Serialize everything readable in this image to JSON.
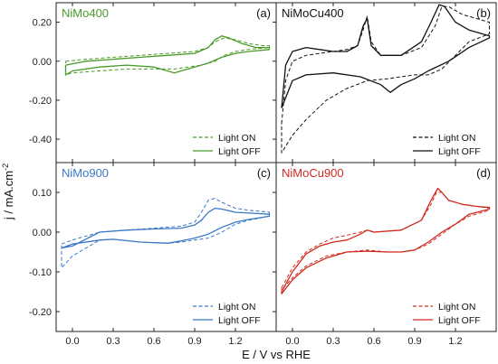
{
  "figure": {
    "ylabel": "j / mA.cm",
    "ylabel_sup": "-2",
    "xlabel": "E / V vs RHE"
  },
  "chart_data": [
    {
      "type": "line",
      "title": "NiMo400",
      "title_color": "#4a9a2a",
      "panel_label": "(a)",
      "x_ticks": [
        "0.0",
        "0.3",
        "0.6",
        "0.9",
        "1.2"
      ],
      "y_ticks": [
        "0.20",
        "0.00",
        "-0.20",
        "-0.40"
      ],
      "xlim": [
        -0.12,
        1.5
      ],
      "ylim": [
        -0.52,
        0.3
      ],
      "legend_position": "bottom-right",
      "series": [
        {
          "name": "Light ON",
          "style": "dashed",
          "color": "#4a9a2a",
          "x": [
            -0.05,
            0.1,
            0.3,
            0.5,
            0.7,
            0.9,
            1.0,
            1.05,
            1.12,
            1.2,
            1.3,
            1.4,
            1.45,
            1.45,
            1.3,
            1.2,
            1.12,
            1.05,
            0.95,
            0.85,
            0.75,
            0.6,
            0.4,
            0.2,
            0.0,
            -0.05
          ],
          "y": [
            0.0,
            0.01,
            0.02,
            0.03,
            0.04,
            0.05,
            0.07,
            0.1,
            0.12,
            0.11,
            0.09,
            0.08,
            0.08,
            0.07,
            0.06,
            0.05,
            0.03,
            0.0,
            -0.02,
            -0.03,
            -0.04,
            -0.04,
            -0.04,
            -0.05,
            -0.06,
            -0.07
          ]
        },
        {
          "name": "Light OFF",
          "style": "solid",
          "color": "#4a9a2a",
          "x": [
            -0.05,
            0.1,
            0.3,
            0.5,
            0.7,
            0.9,
            1.0,
            1.05,
            1.1,
            1.15,
            1.25,
            1.35,
            1.45,
            1.45,
            1.3,
            1.2,
            1.1,
            1.0,
            0.9,
            0.8,
            0.75,
            0.7,
            0.6,
            0.4,
            0.2,
            0.0,
            -0.05
          ],
          "y": [
            -0.02,
            0.0,
            0.01,
            0.02,
            0.03,
            0.04,
            0.07,
            0.11,
            0.13,
            0.12,
            0.09,
            0.07,
            0.07,
            0.06,
            0.05,
            0.04,
            0.02,
            -0.01,
            -0.03,
            -0.05,
            -0.06,
            -0.05,
            -0.03,
            -0.02,
            -0.03,
            -0.05,
            -0.07
          ]
        }
      ]
    },
    {
      "type": "line",
      "title": "NiMoCu400",
      "title_color": "#111111",
      "panel_label": "(b)",
      "x_ticks": [
        "0.0",
        "0.3",
        "0.6",
        "0.9",
        "1.2"
      ],
      "y_ticks": [],
      "xlim": [
        -0.12,
        1.5
      ],
      "ylim": [
        -0.52,
        0.3
      ],
      "legend_position": "bottom-right",
      "series": [
        {
          "name": "Light ON",
          "style": "dashed",
          "color": "#111111",
          "x": [
            -0.08,
            -0.05,
            0.0,
            0.1,
            0.2,
            0.3,
            0.4,
            0.48,
            0.52,
            0.55,
            0.58,
            0.65,
            0.8,
            0.95,
            1.05,
            1.1,
            1.15,
            1.25,
            1.35,
            1.45,
            1.45,
            1.3,
            1.2,
            1.1,
            1.0,
            0.9,
            0.8,
            0.7,
            0.55,
            0.4,
            0.25,
            0.1,
            0.0,
            -0.08
          ],
          "y": [
            -0.32,
            -0.1,
            0.0,
            0.03,
            0.04,
            0.05,
            0.06,
            0.08,
            0.16,
            0.23,
            0.1,
            0.03,
            0.03,
            0.07,
            0.18,
            0.28,
            0.28,
            0.24,
            0.22,
            0.2,
            0.14,
            0.1,
            0.03,
            -0.04,
            -0.07,
            -0.07,
            -0.08,
            -0.09,
            -0.1,
            -0.14,
            -0.2,
            -0.3,
            -0.38,
            -0.47
          ]
        },
        {
          "name": "Light OFF",
          "style": "solid",
          "color": "#111111",
          "x": [
            -0.08,
            -0.05,
            0.0,
            0.1,
            0.2,
            0.3,
            0.4,
            0.48,
            0.52,
            0.55,
            0.58,
            0.65,
            0.8,
            0.95,
            1.02,
            1.08,
            1.12,
            1.2,
            1.3,
            1.45,
            1.45,
            1.3,
            1.15,
            1.0,
            0.9,
            0.8,
            0.72,
            0.65,
            0.5,
            0.3,
            0.1,
            0.0,
            -0.08
          ],
          "y": [
            -0.24,
            -0.02,
            0.05,
            0.07,
            0.06,
            0.05,
            0.05,
            0.08,
            0.18,
            0.22,
            0.08,
            0.03,
            0.03,
            0.1,
            0.2,
            0.29,
            0.28,
            0.2,
            0.16,
            0.13,
            0.12,
            0.07,
            0.0,
            -0.05,
            -0.09,
            -0.12,
            -0.16,
            -0.12,
            -0.08,
            -0.06,
            -0.07,
            -0.1,
            -0.24
          ]
        }
      ]
    },
    {
      "type": "line",
      "title": "NiMo900",
      "title_color": "#3a78c8",
      "panel_label": "(c)",
      "x_ticks": [
        "0.0",
        "0.3",
        "0.6",
        "0.9",
        "1.2"
      ],
      "y_ticks": [
        "0.10",
        "0.00",
        "-0.10",
        "-0.20"
      ],
      "xlim": [
        -0.12,
        1.5
      ],
      "ylim": [
        -0.25,
        0.175
      ],
      "legend_position": "bottom-right",
      "series": [
        {
          "name": "Light ON",
          "style": "dashed",
          "color": "#3a78c8",
          "x": [
            -0.08,
            0.0,
            0.2,
            0.4,
            0.6,
            0.8,
            0.9,
            0.95,
            1.0,
            1.05,
            1.1,
            1.2,
            1.3,
            1.45,
            1.45,
            1.3,
            1.2,
            1.1,
            1.0,
            0.9,
            0.8,
            0.7,
            0.5,
            0.3,
            0.2,
            0.1,
            0.0,
            -0.08
          ],
          "y": [
            -0.03,
            -0.02,
            0.0,
            0.005,
            0.01,
            0.015,
            0.025,
            0.05,
            0.08,
            0.085,
            0.075,
            0.06,
            0.055,
            0.05,
            0.04,
            0.03,
            0.02,
            0.0,
            -0.015,
            -0.02,
            -0.025,
            -0.028,
            -0.025,
            -0.018,
            -0.02,
            -0.04,
            -0.06,
            -0.09
          ]
        },
        {
          "name": "Light OFF",
          "style": "solid",
          "color": "#3a78c8",
          "x": [
            -0.08,
            0.0,
            0.2,
            0.4,
            0.6,
            0.8,
            0.9,
            0.95,
            1.0,
            1.05,
            1.1,
            1.2,
            1.3,
            1.45,
            1.45,
            1.3,
            1.2,
            1.1,
            1.0,
            0.9,
            0.8,
            0.7,
            0.5,
            0.3,
            0.2,
            0.0,
            -0.08
          ],
          "y": [
            -0.04,
            -0.035,
            0.0,
            0.005,
            0.008,
            0.01,
            0.018,
            0.03,
            0.05,
            0.06,
            0.058,
            0.05,
            0.048,
            0.045,
            0.04,
            0.032,
            0.025,
            0.012,
            -0.005,
            -0.015,
            -0.022,
            -0.028,
            -0.025,
            -0.018,
            -0.02,
            -0.03,
            -0.04
          ]
        }
      ]
    },
    {
      "type": "line",
      "title": "NiMoCu900",
      "title_color": "#d02a1e",
      "panel_label": "(d)",
      "x_ticks": [
        "0.0",
        "0.3",
        "0.6",
        "0.9",
        "1.2"
      ],
      "y_ticks": [],
      "xlim": [
        -0.12,
        1.5
      ],
      "ylim": [
        -0.25,
        0.175
      ],
      "legend_position": "bottom-right",
      "series": [
        {
          "name": "Light ON",
          "style": "dashed",
          "color": "#d02a1e",
          "x": [
            -0.08,
            0.0,
            0.1,
            0.2,
            0.3,
            0.4,
            0.5,
            0.55,
            0.6,
            0.8,
            0.95,
            1.02,
            1.06,
            1.1,
            1.15,
            1.25,
            1.35,
            1.45,
            1.45,
            1.3,
            1.2,
            1.1,
            1.0,
            0.9,
            0.8,
            0.7,
            0.55,
            0.4,
            0.25,
            0.1,
            0.0,
            -0.08
          ],
          "y": [
            -0.14,
            -0.09,
            -0.05,
            -0.03,
            -0.015,
            -0.008,
            0.0,
            0.005,
            0.0,
            0.005,
            0.03,
            0.07,
            0.1,
            0.1,
            0.08,
            0.07,
            0.065,
            0.06,
            0.055,
            0.04,
            0.02,
            -0.005,
            -0.03,
            -0.045,
            -0.05,
            -0.05,
            -0.045,
            -0.05,
            -0.06,
            -0.085,
            -0.115,
            -0.145
          ]
        },
        {
          "name": "Light OFF",
          "style": "solid",
          "color": "#d02a1e",
          "x": [
            -0.08,
            0.0,
            0.1,
            0.2,
            0.3,
            0.4,
            0.5,
            0.55,
            0.6,
            0.8,
            0.95,
            1.02,
            1.07,
            1.1,
            1.15,
            1.25,
            1.35,
            1.45,
            1.45,
            1.3,
            1.2,
            1.1,
            1.0,
            0.9,
            0.8,
            0.7,
            0.55,
            0.4,
            0.25,
            0.1,
            0.0,
            -0.08
          ],
          "y": [
            -0.15,
            -0.1,
            -0.055,
            -0.035,
            -0.025,
            -0.02,
            -0.005,
            0.005,
            0.0,
            0.005,
            0.03,
            0.08,
            0.11,
            0.1,
            0.08,
            0.07,
            0.065,
            0.062,
            0.058,
            0.045,
            0.02,
            0.0,
            -0.025,
            -0.045,
            -0.05,
            -0.05,
            -0.048,
            -0.05,
            -0.065,
            -0.09,
            -0.12,
            -0.155
          ]
        }
      ]
    }
  ]
}
